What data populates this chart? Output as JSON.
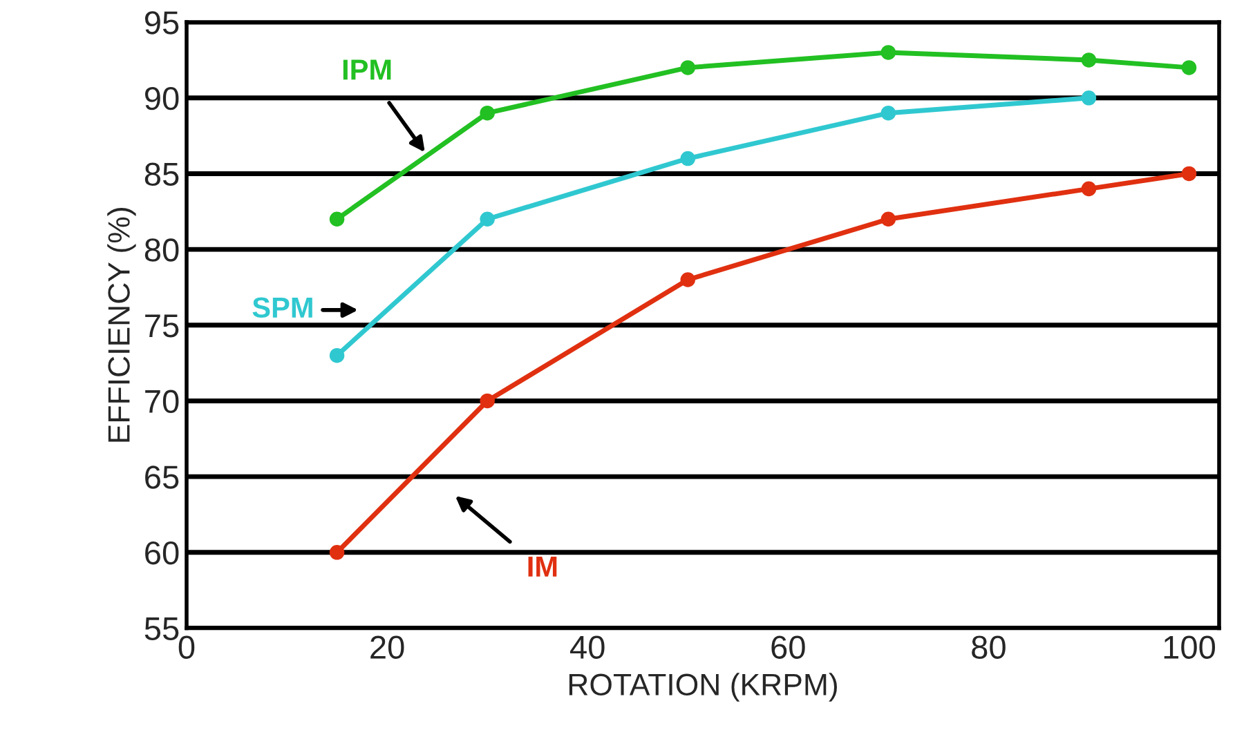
{
  "chart_data": {
    "type": "line",
    "xlabel": "ROTATION (KRPM)",
    "ylabel": "EFFICIENCY (%)",
    "series": [
      {
        "name": "IPM",
        "color": "#22c022",
        "x": [
          15,
          30,
          50,
          70,
          90,
          100
        ],
        "values": [
          82,
          89,
          92,
          93,
          92.5,
          92
        ]
      },
      {
        "name": "SPM",
        "color": "#30c8d0",
        "x": [
          15,
          30,
          50,
          70,
          90
        ],
        "values": [
          73,
          82,
          86,
          89,
          90
        ]
      },
      {
        "name": "IM",
        "color": "#e03010",
        "x": [
          15,
          30,
          50,
          70,
          90,
          100
        ],
        "values": [
          60,
          70,
          78,
          82,
          84,
          85
        ]
      }
    ],
    "xlim": [
      0,
      103
    ],
    "xticks": [
      0,
      20,
      40,
      60,
      80,
      100
    ],
    "ylim": [
      55,
      95
    ],
    "yticks": [
      55,
      60,
      65,
      70,
      75,
      80,
      85,
      90,
      95
    ],
    "grid": "y",
    "marker": "circle",
    "line_style": "solid",
    "legend": false
  }
}
